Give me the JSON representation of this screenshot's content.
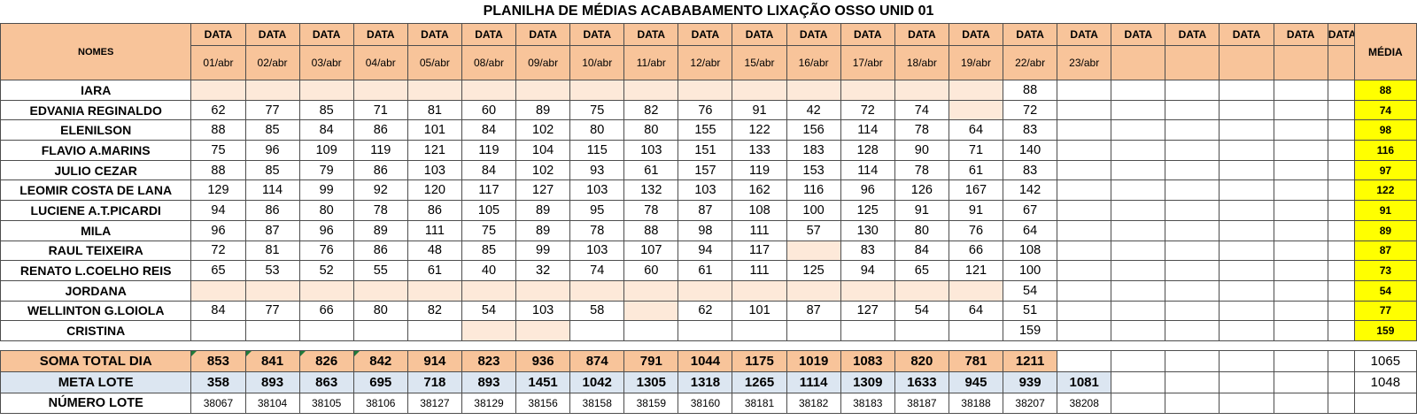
{
  "title": "PLANILHA DE MÉDIAS ACABABAMENTO LIXAÇÃO OSSO UNID 01",
  "header": {
    "names_label": "NOMES",
    "data_label": "DATA",
    "media_label": "MÉDIA",
    "dates": [
      "01/abr",
      "02/abr",
      "03/abr",
      "04/abr",
      "05/abr",
      "08/abr",
      "09/abr",
      "10/abr",
      "11/abr",
      "12/abr",
      "15/abr",
      "16/abr",
      "17/abr",
      "18/abr",
      "19/abr",
      "22/abr",
      "23/abr",
      "",
      "",
      "",
      "",
      "",
      ""
    ]
  },
  "rows": [
    {
      "name": "IARA",
      "values": [
        "",
        "",
        "",
        "",
        "",
        "",
        "",
        "",
        "",
        "",
        "",
        "",
        "",
        "",
        "",
        "88"
      ],
      "media": "88"
    },
    {
      "name": "EDVANIA REGINALDO",
      "values": [
        "62",
        "77",
        "85",
        "71",
        "81",
        "60",
        "89",
        "75",
        "82",
        "76",
        "91",
        "42",
        "72",
        "74",
        "",
        "72"
      ],
      "media": "74"
    },
    {
      "name": "ELENILSON",
      "values": [
        "88",
        "85",
        "84",
        "86",
        "101",
        "84",
        "102",
        "80",
        "80",
        "155",
        "122",
        "156",
        "114",
        "78",
        "64",
        "83"
      ],
      "media": "98"
    },
    {
      "name": "FLAVIO A.MARINS",
      "values": [
        "75",
        "96",
        "109",
        "119",
        "121",
        "119",
        "104",
        "115",
        "103",
        "151",
        "133",
        "183",
        "128",
        "90",
        "71",
        "140"
      ],
      "media": "116"
    },
    {
      "name": "JULIO CEZAR",
      "values": [
        "88",
        "85",
        "79",
        "86",
        "103",
        "84",
        "102",
        "93",
        "61",
        "157",
        "119",
        "153",
        "114",
        "78",
        "61",
        "83"
      ],
      "media": "97"
    },
    {
      "name": "LEOMIR COSTA DE LANA",
      "values": [
        "129",
        "114",
        "99",
        "92",
        "120",
        "117",
        "127",
        "103",
        "132",
        "103",
        "162",
        "116",
        "96",
        "126",
        "167",
        "142"
      ],
      "media": "122"
    },
    {
      "name": "LUCIENE A.T.PICARDI",
      "values": [
        "94",
        "86",
        "80",
        "78",
        "86",
        "105",
        "89",
        "95",
        "78",
        "87",
        "108",
        "100",
        "125",
        "91",
        "91",
        "67"
      ],
      "media": "91"
    },
    {
      "name": "MILA",
      "values": [
        "96",
        "87",
        "96",
        "89",
        "111",
        "75",
        "89",
        "78",
        "88",
        "98",
        "111",
        "57",
        "130",
        "80",
        "76",
        "64"
      ],
      "media": "89"
    },
    {
      "name": "RAUL TEIXEIRA",
      "values": [
        "72",
        "81",
        "76",
        "86",
        "48",
        "85",
        "99",
        "103",
        "107",
        "94",
        "117",
        "",
        "83",
        "84",
        "66",
        "108"
      ],
      "media": "87"
    },
    {
      "name": "RENATO L.COELHO REIS",
      "values": [
        "65",
        "53",
        "52",
        "55",
        "61",
        "40",
        "32",
        "74",
        "60",
        "61",
        "111",
        "125",
        "94",
        "65",
        "121",
        "100"
      ],
      "media": "73"
    },
    {
      "name": "JORDANA",
      "values": [
        "",
        "",
        "",
        "",
        "",
        "",
        "",
        "",
        "",
        "",
        "",
        "",
        "",
        "",
        "",
        "54"
      ],
      "media": "54"
    },
    {
      "name": "WELLINTON G.LOIOLA",
      "values": [
        "84",
        "77",
        "66",
        "80",
        "82",
        "54",
        "103",
        "58",
        "",
        "62",
        "101",
        "87",
        "127",
        "54",
        "64",
        "51"
      ],
      "media": "77"
    },
    {
      "name": "CRISTINA",
      "values": [
        "",
        "",
        "",
        "",
        "",
        "",
        "",
        "",
        "",
        "",
        "",
        "",
        "",
        "",
        "",
        "159"
      ],
      "media": "159"
    }
  ],
  "shaded_cells": [
    [
      0,
      0
    ],
    [
      0,
      1
    ],
    [
      0,
      2
    ],
    [
      0,
      3
    ],
    [
      0,
      4
    ],
    [
      0,
      5
    ],
    [
      0,
      6
    ],
    [
      0,
      7
    ],
    [
      0,
      8
    ],
    [
      0,
      9
    ],
    [
      0,
      10
    ],
    [
      0,
      11
    ],
    [
      0,
      12
    ],
    [
      0,
      13
    ],
    [
      0,
      14
    ],
    [
      1,
      14
    ],
    [
      8,
      11
    ],
    [
      10,
      0
    ],
    [
      10,
      1
    ],
    [
      10,
      2
    ],
    [
      10,
      3
    ],
    [
      10,
      4
    ],
    [
      10,
      5
    ],
    [
      10,
      6
    ],
    [
      10,
      7
    ],
    [
      10,
      8
    ],
    [
      10,
      9
    ],
    [
      10,
      10
    ],
    [
      10,
      11
    ],
    [
      10,
      12
    ],
    [
      10,
      13
    ],
    [
      10,
      14
    ],
    [
      11,
      8
    ],
    [
      12,
      5
    ],
    [
      12,
      6
    ]
  ],
  "totals": {
    "soma_label": "SOMA TOTAL DIA",
    "soma_values": [
      "853",
      "841",
      "826",
      "842",
      "914",
      "823",
      "936",
      "874",
      "791",
      "1044",
      "1175",
      "1019",
      "1083",
      "820",
      "781",
      "1211"
    ],
    "soma_media": "1065",
    "meta_label": "META LOTE",
    "meta_values": [
      "358",
      "893",
      "863",
      "695",
      "718",
      "893",
      "1451",
      "1042",
      "1305",
      "1318",
      "1265",
      "1114",
      "1309",
      "1633",
      "945",
      "939",
      "1081"
    ],
    "meta_media": "1048",
    "lote_label": "NÚMERO LOTE",
    "lote_values": [
      "38067",
      "38104",
      "38105",
      "38106",
      "38127",
      "38129",
      "38156",
      "38158",
      "38159",
      "38160",
      "38181",
      "38182",
      "38183",
      "38187",
      "38188",
      "38207",
      "38208"
    ]
  },
  "colors": {
    "header_fill": "#f8c49a",
    "shaded_fill": "#fde9d9",
    "average_fill": "#ffff00",
    "meta_fill": "#dce6f1",
    "corner_marker": "#1f7a3a"
  }
}
